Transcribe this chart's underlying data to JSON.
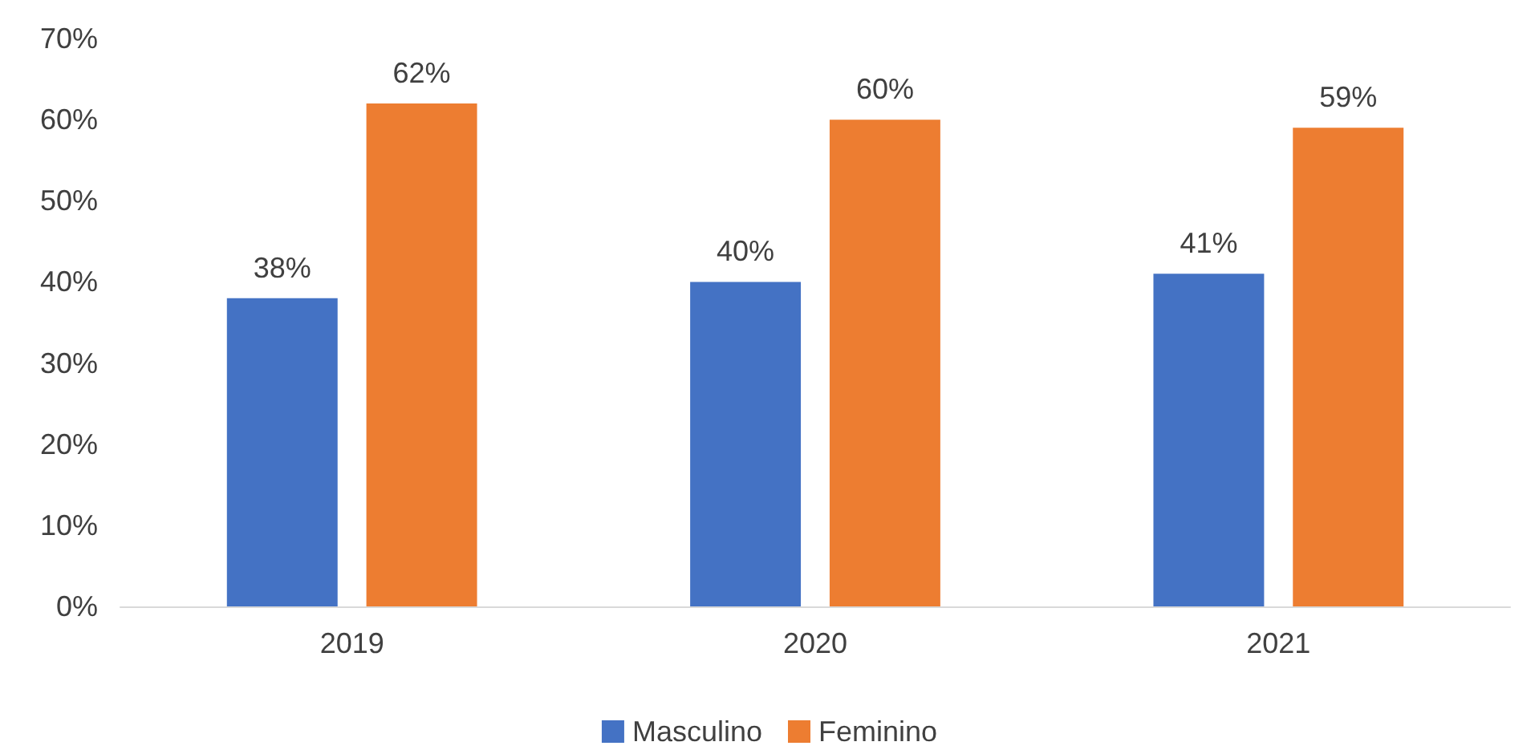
{
  "chart_data": {
    "type": "bar",
    "categories": [
      "2019",
      "2020",
      "2021"
    ],
    "series": [
      {
        "name": "Masculino",
        "color": "#4472c4",
        "values": [
          38,
          40,
          41
        ],
        "value_labels": [
          "38%",
          "40%",
          "41%"
        ]
      },
      {
        "name": "Feminino",
        "color": "#ed7d31",
        "values": [
          62,
          60,
          59
        ],
        "value_labels": [
          "62%",
          "60%",
          "59%"
        ]
      }
    ],
    "ylim": [
      0,
      70
    ],
    "yticks": [
      {
        "value": 0,
        "label": "0%"
      },
      {
        "value": 10,
        "label": "10%"
      },
      {
        "value": 20,
        "label": "20%"
      },
      {
        "value": 30,
        "label": "30%"
      },
      {
        "value": 40,
        "label": "40%"
      },
      {
        "value": 50,
        "label": "50%"
      },
      {
        "value": 60,
        "label": "60%"
      },
      {
        "value": 70,
        "label": "70%"
      }
    ],
    "grid": false,
    "legend": "bottom"
  }
}
